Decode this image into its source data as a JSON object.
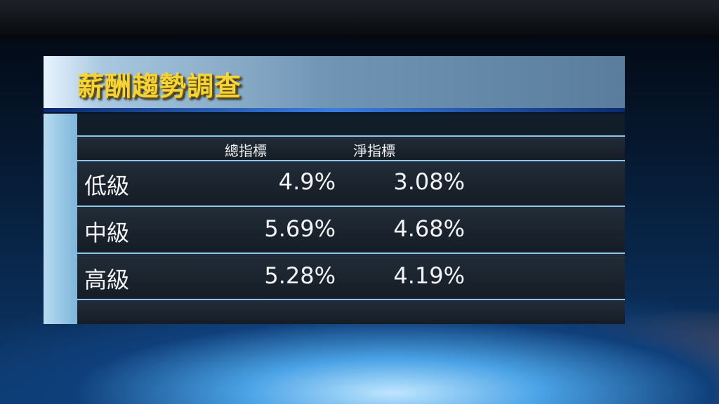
{
  "title": "薪酬趨勢調查",
  "table": {
    "headers": [
      "總指標",
      "淨指標"
    ],
    "rows": [
      {
        "label": "低級",
        "total": "4.9%",
        "net": "3.08%"
      },
      {
        "label": "中級",
        "total": "5.69%",
        "net": "4.68%"
      },
      {
        "label": "高級",
        "total": "5.28%",
        "net": "4.19%"
      }
    ]
  },
  "colors": {
    "title": "#f5d43a",
    "row_divider": "#8ec6ea"
  }
}
